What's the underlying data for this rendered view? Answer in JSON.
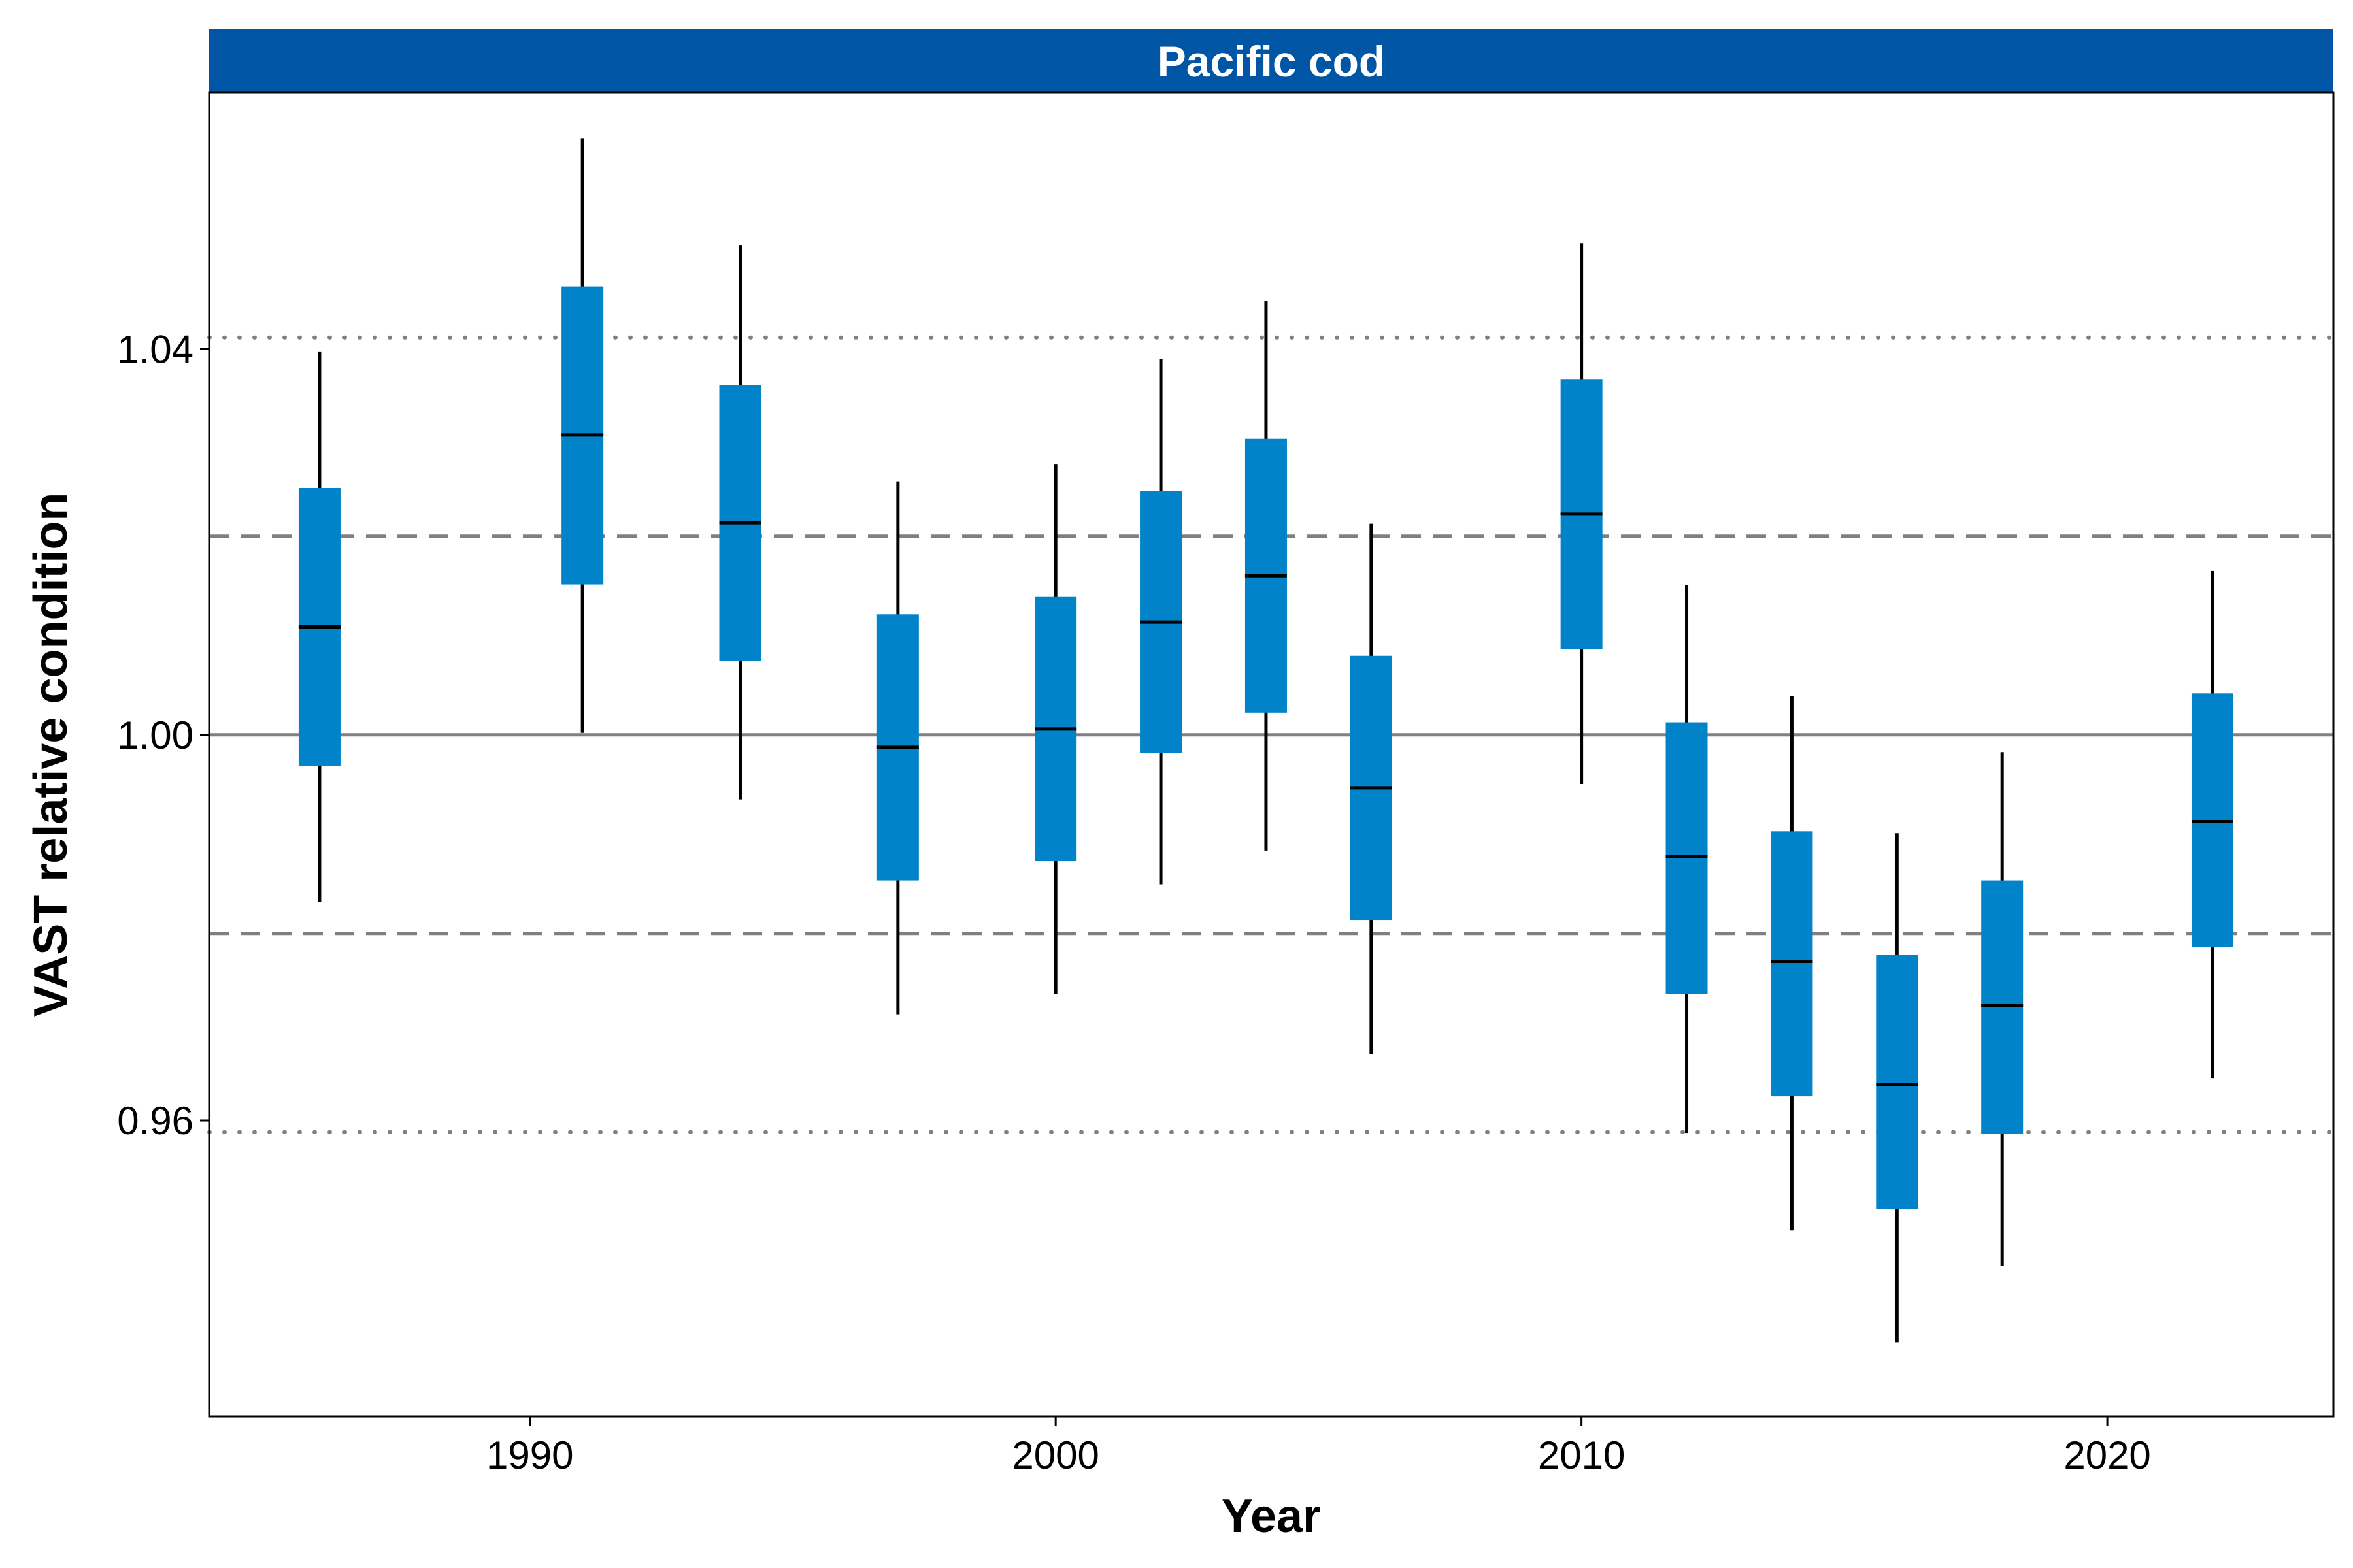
{
  "colors": {
    "strip": "#0055a5",
    "box": "#0083c9",
    "whisker": "#000000",
    "median": "#000000",
    "reference_solid": "#808080",
    "reference_dashed": "#808080",
    "reference_dotted": "#808080"
  },
  "chart_data": {
    "type": "boxplot",
    "title": "",
    "panel_title": "Pacific cod",
    "xlabel": "Year",
    "ylabel": "VAST relative condition",
    "xlim": [
      1983.9,
      2024.3
    ],
    "ylim": [
      0.9293,
      1.0666
    ],
    "x_ticks": [
      1990,
      2000,
      2010,
      2020
    ],
    "x_tick_labels": [
      "1990",
      "2000",
      "2010",
      "2020"
    ],
    "y_ticks": [
      0.96,
      1.0,
      1.04
    ],
    "y_tick_labels": [
      "0.96",
      "1.00",
      "1.04"
    ],
    "grid": false,
    "reference_lines": [
      {
        "style": "solid",
        "y": 1.0
      },
      {
        "style": "dashed",
        "y": 1.0206
      },
      {
        "style": "dashed",
        "y": 0.9794
      },
      {
        "style": "dotted",
        "y": 1.0412
      },
      {
        "style": "dotted",
        "y": 0.9588
      }
    ],
    "points": [
      {
        "year": 1986,
        "low": 0.9827,
        "q1": 0.9968,
        "median": 1.0112,
        "q3": 1.0256,
        "high": 1.0397
      },
      {
        "year": 1991,
        "low": 1.0002,
        "q1": 1.0156,
        "median": 1.0311,
        "q3": 1.0465,
        "high": 1.0619
      },
      {
        "year": 1994,
        "low": 0.9933,
        "q1": 1.0077,
        "median": 1.022,
        "q3": 1.0363,
        "high": 1.0508
      },
      {
        "year": 1997,
        "low": 0.971,
        "q1": 0.9849,
        "median": 0.9987,
        "q3": 1.0125,
        "high": 1.0263
      },
      {
        "year": 2000,
        "low": 0.9731,
        "q1": 0.9869,
        "median": 1.0006,
        "q3": 1.0143,
        "high": 1.0281
      },
      {
        "year": 2002,
        "low": 0.9845,
        "q1": 0.9981,
        "median": 1.0117,
        "q3": 1.0253,
        "high": 1.039
      },
      {
        "year": 2004,
        "low": 0.988,
        "q1": 1.0023,
        "median": 1.0165,
        "q3": 1.0307,
        "high": 1.045
      },
      {
        "year": 2006,
        "low": 0.9669,
        "q1": 0.9808,
        "median": 0.9945,
        "q3": 1.0082,
        "high": 1.0219
      },
      {
        "year": 2010,
        "low": 0.9949,
        "q1": 1.0089,
        "median": 1.0229,
        "q3": 1.0369,
        "high": 1.051
      },
      {
        "year": 2012,
        "low": 0.9587,
        "q1": 0.9731,
        "median": 0.9874,
        "q3": 1.0013,
        "high": 1.0155
      },
      {
        "year": 2014,
        "low": 0.9486,
        "q1": 0.9625,
        "median": 0.9765,
        "q3": 0.99,
        "high": 1.004
      },
      {
        "year": 2016,
        "low": 0.937,
        "q1": 0.9508,
        "median": 0.9637,
        "q3": 0.9772,
        "high": 0.9898
      },
      {
        "year": 2018,
        "low": 0.9449,
        "q1": 0.9586,
        "median": 0.9719,
        "q3": 0.9849,
        "high": 0.9982
      },
      {
        "year": 2022,
        "low": 0.9644,
        "q1": 0.978,
        "median": 0.991,
        "q3": 1.0043,
        "high": 1.017
      }
    ]
  }
}
